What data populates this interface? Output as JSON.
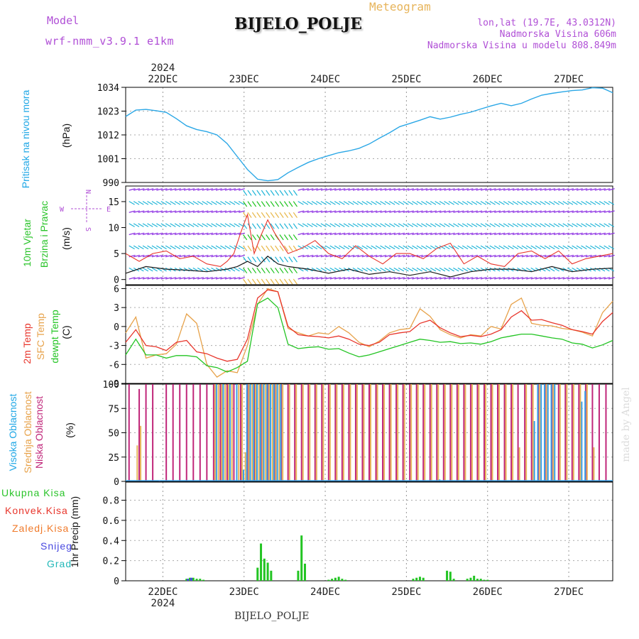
{
  "header": {
    "model_label": "Model",
    "model_name": "wrf-nmm_v3.9.1 e1km",
    "title": "Meteogram",
    "station": "BIJELO_POLJE",
    "coords": "lon,lat (19.7E, 43.0312N)",
    "altitude": "Nadmorska Visina 606m",
    "model_altitude": "Nadmorska Visina u modelu 808.849m"
  },
  "footer": {
    "station": "BIJELO_POLJE",
    "watermark": "made by Angel"
  },
  "colors": {
    "pressure": "#2aa7e6",
    "wind_speed": "#1a1a1a",
    "gust": "#e8352b",
    "t2m": "#e8352b",
    "tsfc": "#e7a24a",
    "dewpt": "#22c422",
    "cloud_high": "#3aa0e6",
    "cloud_mid": "#e7b45a",
    "cloud_low": "#c0267a",
    "rain_total": "#22c422",
    "rain_conv": "#e8352b",
    "rain_frz": "#f07a2a",
    "snow": "#4848e0",
    "graupel": "#22b8b8",
    "barb_weak": "#8a2be2",
    "barb_mid": "#1fb5d8",
    "barb_strong": "#e8b84a"
  },
  "chart_data": [
    {
      "type": "line",
      "title": "",
      "ylabel_lines": [
        "Pritisak na nivou mora",
        "(hPa)"
      ],
      "yticks": [
        990,
        1001,
        1012,
        1023,
        1034
      ],
      "ylim": [
        990,
        1034
      ],
      "date_year": "2024",
      "xticks": [
        "22DEC",
        "23DEC",
        "24DEC",
        "25DEC",
        "26DEC",
        "27DEC"
      ],
      "xlim": [
        0,
        144
      ],
      "series": [
        {
          "name": "Pritisak na nivou mora",
          "x": [
            0,
            3,
            6,
            9,
            12,
            15,
            18,
            21,
            24,
            27,
            30,
            33,
            36,
            39,
            42,
            45,
            48,
            51,
            54,
            57,
            60,
            63,
            66,
            69,
            72,
            75,
            78,
            81,
            84,
            87,
            90,
            93,
            96,
            99,
            102,
            105,
            108,
            111,
            114,
            117,
            120,
            123,
            126,
            129,
            132,
            135,
            138,
            141,
            144
          ],
          "y": [
            1020.5,
            1023.5,
            1023.8,
            1023.2,
            1022.4,
            1019.5,
            1016.2,
            1014.5,
            1013.5,
            1012,
            1008,
            1002,
            996,
            991.5,
            990.8,
            991.3,
            994.5,
            997,
            999.3,
            1001,
            1002.4,
            1003.8,
            1004.6,
            1005.8,
            1007.8,
            1010.5,
            1013,
            1015.8,
            1017.3,
            1018.8,
            1020.4,
            1019.3,
            1020.2,
            1021.5,
            1022.5,
            1024,
            1025.4,
            1026.6,
            1025.5,
            1026.6,
            1028.6,
            1030.4,
            1031.2,
            1031.9,
            1032.5,
            1032.8,
            1033.8,
            1033.6,
            1031.5
          ]
        }
      ]
    },
    {
      "type": "line",
      "ylabel_lines": [
        "10m Vjetar",
        "Brzina i Pravac",
        "(m/s)"
      ],
      "direction_legend": [
        "N",
        "S",
        "W",
        "E"
      ],
      "yticks": [
        0,
        5,
        10,
        15
      ],
      "ylim": [
        -1,
        18
      ],
      "xlim": [
        0,
        144
      ],
      "series": [
        {
          "name": "10m speed",
          "x": [
            0,
            6,
            12,
            18,
            24,
            30,
            33,
            36,
            39,
            42,
            45,
            48,
            54,
            60,
            66,
            72,
            78,
            84,
            90,
            96,
            102,
            108,
            114,
            120,
            126,
            132,
            138,
            144
          ],
          "y": [
            1.2,
            2.5,
            2,
            1.8,
            1.5,
            2,
            2.5,
            3.5,
            2.5,
            4.5,
            3,
            2.5,
            2,
            1.2,
            2,
            1,
            1.5,
            0.8,
            1.5,
            0.5,
            1.5,
            2,
            2,
            1.5,
            2.5,
            1.5,
            2,
            2.2
          ]
        },
        {
          "name": "gust",
          "x": [
            0,
            4,
            8,
            12,
            16,
            20,
            24,
            28,
            30,
            32,
            34,
            36,
            38,
            40,
            42,
            44,
            46,
            48,
            52,
            56,
            60,
            64,
            68,
            72,
            76,
            80,
            84,
            88,
            92,
            96,
            100,
            104,
            108,
            112,
            116,
            120,
            124,
            128,
            132,
            136,
            140,
            144
          ],
          "y": [
            5,
            3.5,
            5,
            5.5,
            4,
            4.5,
            3,
            2.5,
            3.5,
            5,
            9,
            12.5,
            5,
            8.5,
            11.5,
            9,
            7,
            5,
            6,
            7.5,
            5,
            4,
            6.5,
            4.5,
            3,
            5,
            5,
            4,
            6,
            7,
            3,
            4.5,
            3,
            2.5,
            5,
            5.5,
            4,
            5.5,
            3,
            4,
            4.5,
            5
          ]
        }
      ]
    },
    {
      "type": "line",
      "ylabel_lines": [
        "2m Temp",
        "SFC Temp",
        "dewpt Temp",
        "(C)"
      ],
      "yticks": [
        -9,
        -6,
        -3,
        0,
        3,
        6
      ],
      "ylim": [
        -9,
        6.5
      ],
      "xlim": [
        0,
        144
      ],
      "series": [
        {
          "name": "2m Temp",
          "x": [
            0,
            3,
            6,
            9,
            12,
            15,
            18,
            21,
            24,
            27,
            30,
            33,
            36,
            39,
            42,
            45,
            48,
            51,
            54,
            57,
            60,
            63,
            66,
            69,
            72,
            75,
            78,
            81,
            84,
            87,
            90,
            93,
            96,
            99,
            102,
            105,
            108,
            111,
            114,
            117,
            120,
            123,
            126,
            129,
            132,
            135,
            138,
            141,
            144
          ],
          "y": [
            -2.5,
            -0.5,
            -3,
            -3.2,
            -3.8,
            -2.5,
            -2.2,
            -4,
            -4.3,
            -5,
            -5.5,
            -5.2,
            -2,
            4.5,
            5.8,
            5.5,
            0,
            -1.3,
            -1.5,
            -1.6,
            -1.8,
            -1.5,
            -2,
            -2.8,
            -3,
            -2.5,
            -1.3,
            -1,
            -0.8,
            0.5,
            1,
            -0.2,
            -1,
            -1.6,
            -1.4,
            -1.6,
            -1.2,
            -0.5,
            1.5,
            2.5,
            1,
            1.1,
            0.6,
            0.2,
            -0.5,
            -0.8,
            -1.2,
            0.8,
            2.2
          ]
        },
        {
          "name": "SFC Temp",
          "x": [
            0,
            3,
            6,
            9,
            12,
            15,
            18,
            21,
            24,
            27,
            30,
            33,
            36,
            39,
            42,
            45,
            48,
            51,
            54,
            57,
            60,
            63,
            66,
            69,
            72,
            75,
            78,
            81,
            84,
            87,
            90,
            93,
            96,
            99,
            102,
            105,
            108,
            111,
            114,
            117,
            120,
            123,
            126,
            129,
            132,
            135,
            138,
            141,
            144
          ],
          "y": [
            -1,
            1.5,
            -5,
            -4.5,
            -4.3,
            -2.8,
            2,
            0.5,
            -6,
            -8,
            -7,
            -7.3,
            -3,
            3.5,
            6,
            5.5,
            -0.3,
            -1,
            -1.5,
            -1,
            -1.2,
            0,
            -1,
            -2.5,
            -3.2,
            -2.3,
            -1,
            -0.5,
            -0.3,
            2.8,
            1.6,
            -0.5,
            -1.3,
            -1.8,
            -1.3,
            -1.5,
            0,
            -0.4,
            3.5,
            4.5,
            0.5,
            0.2,
            0.1,
            -0.3,
            -0.5,
            -0.9,
            -1.5,
            2.2,
            4
          ]
        },
        {
          "name": "dewpt Temp",
          "x": [
            0,
            3,
            6,
            9,
            12,
            15,
            18,
            21,
            24,
            27,
            30,
            33,
            36,
            39,
            42,
            45,
            48,
            51,
            54,
            57,
            60,
            63,
            66,
            69,
            72,
            75,
            78,
            81,
            84,
            87,
            90,
            93,
            96,
            99,
            102,
            105,
            108,
            111,
            114,
            117,
            120,
            123,
            126,
            129,
            132,
            135,
            138,
            141,
            144
          ],
          "y": [
            -4.5,
            -2,
            -4.5,
            -4.5,
            -5,
            -4.6,
            -4.6,
            -4.8,
            -6.2,
            -6.5,
            -7.2,
            -6.5,
            -5.5,
            3.6,
            4.5,
            3,
            -2.8,
            -3.5,
            -3.3,
            -3.2,
            -3.6,
            -3.5,
            -4.2,
            -4.8,
            -4.5,
            -4,
            -3.5,
            -3,
            -2.5,
            -2,
            -2.2,
            -2.5,
            -2.4,
            -2.7,
            -2.6,
            -2.8,
            -2.4,
            -1.8,
            -1.5,
            -1.2,
            -1.2,
            -1.5,
            -1.8,
            -2,
            -2.6,
            -2.8,
            -3.4,
            -2.9,
            -2.2
          ]
        }
      ]
    },
    {
      "type": "bar",
      "ylabel_lines": [
        "Visoka Oblacnost",
        "Srednja Oblacnost",
        "Niska Oblacnost",
        "(%)"
      ],
      "yticks": [
        0,
        25,
        50,
        75,
        100
      ],
      "ylim": [
        0,
        100
      ],
      "xlim": [
        0,
        144
      ],
      "series": [
        {
          "name": "Niska Oblacnost",
          "x": [
            1,
            4,
            6,
            8,
            10,
            12,
            14,
            16,
            18,
            20,
            22,
            24,
            26,
            28,
            30,
            32,
            34,
            36,
            38,
            40,
            42,
            44,
            46,
            48,
            50,
            52,
            54,
            56,
            58,
            60,
            62,
            64,
            66,
            68,
            70,
            72,
            74,
            76,
            78,
            80,
            82,
            84,
            86,
            88,
            90,
            92,
            94,
            96,
            98,
            100,
            102,
            104,
            106,
            108,
            110,
            112,
            114,
            116,
            118,
            120,
            122,
            124,
            126,
            128,
            130,
            132,
            134,
            136,
            138,
            140,
            142
          ],
          "y": [
            100,
            95,
            100,
            100,
            0,
            100,
            100,
            100,
            100,
            100,
            100,
            100,
            100,
            100,
            100,
            100,
            100,
            100,
            100,
            100,
            100,
            100,
            100,
            100,
            100,
            100,
            100,
            100,
            100,
            100,
            100,
            100,
            100,
            100,
            100,
            100,
            100,
            100,
            100,
            100,
            100,
            100,
            100,
            100,
            100,
            100,
            100,
            100,
            100,
            100,
            100,
            100,
            100,
            100,
            100,
            100,
            100,
            100,
            100,
            100,
            100,
            100,
            100,
            100,
            100,
            100,
            100,
            100,
            100,
            100,
            100
          ]
        },
        {
          "name": "Srednja Oblacnost",
          "x": [
            3,
            4,
            26,
            27,
            28,
            29,
            30,
            31,
            33,
            34,
            35,
            36,
            37,
            38,
            39,
            40,
            41,
            42,
            43,
            44,
            45,
            46,
            48,
            50,
            52,
            54,
            56,
            58,
            60,
            62,
            64,
            66,
            68,
            70,
            72,
            74,
            76,
            78,
            80,
            82,
            84,
            86,
            88,
            90,
            92,
            94,
            96,
            98,
            100,
            102,
            104,
            106,
            108,
            110,
            112,
            114,
            116,
            118,
            120,
            122,
            124,
            126,
            128,
            130,
            132,
            134,
            136,
            138
          ],
          "y": [
            37,
            57,
            100,
            100,
            100,
            100,
            100,
            100,
            100,
            100,
            30,
            100,
            100,
            100,
            100,
            100,
            100,
            100,
            100,
            100,
            100,
            100,
            100,
            100,
            100,
            100,
            100,
            100,
            100,
            100,
            100,
            100,
            100,
            100,
            100,
            100,
            100,
            100,
            100,
            100,
            100,
            100,
            100,
            100,
            100,
            100,
            100,
            100,
            100,
            100,
            100,
            100,
            100,
            100,
            100,
            100,
            35,
            100,
            100,
            100,
            100,
            100,
            100,
            100,
            100,
            100,
            100,
            35
          ]
        },
        {
          "name": "Visoka Oblacnost",
          "x": [
            26,
            28,
            30,
            32,
            34,
            35,
            36,
            37,
            38,
            39,
            40,
            41,
            42,
            43,
            44,
            45,
            92,
            120,
            121,
            122,
            123,
            124,
            125,
            126,
            134,
            135
          ],
          "y": [
            100,
            100,
            100,
            100,
            12,
            100,
            100,
            100,
            100,
            100,
            100,
            100,
            100,
            100,
            100,
            100,
            2,
            62,
            100,
            100,
            100,
            100,
            100,
            100,
            82,
            93
          ]
        }
      ]
    },
    {
      "type": "bar",
      "ylabel_lines": [
        "1hr Precip (mm)"
      ],
      "legend": [
        "Ukupna Kisa",
        "Konvek.Kisa",
        "Zaledj.Kisa",
        "Snijeg",
        "Grad"
      ],
      "yticks": [
        0,
        0.2,
        0.4,
        0.6,
        0.8
      ],
      "ylim": [
        0,
        0.98
      ],
      "xlim": [
        0,
        144
      ],
      "xticks_bottom": [
        "22DEC",
        "23DEC",
        "24DEC",
        "25DEC",
        "26DEC",
        "27DEC"
      ],
      "year_bottom": "2024",
      "series": [
        {
          "name": "Ukupna Kisa",
          "x": [
            18,
            19,
            20,
            21,
            22,
            23,
            39,
            40,
            41,
            42,
            43,
            51,
            52,
            53,
            60,
            61,
            62,
            63,
            64,
            65,
            85,
            86,
            87,
            88,
            95,
            96,
            97,
            101,
            102,
            103,
            104,
            105,
            106,
            107
          ],
          "y": [
            0.02,
            0.03,
            0.03,
            0.02,
            0.02,
            0.01,
            0.13,
            0.37,
            0.22,
            0.18,
            0.1,
            0.1,
            0.45,
            0.17,
            0.01,
            0.02,
            0.03,
            0.04,
            0.02,
            0.01,
            0.02,
            0.03,
            0.04,
            0.03,
            0.1,
            0.09,
            0.02,
            0.02,
            0.03,
            0.05,
            0.02,
            0.02,
            0.01,
            0.01
          ]
        },
        {
          "name": "Snijeg",
          "x": [
            18,
            19
          ],
          "y": [
            0.02,
            0.03
          ]
        }
      ]
    }
  ]
}
